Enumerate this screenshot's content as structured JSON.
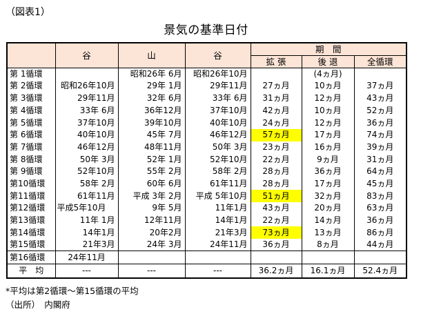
{
  "figure_label": "（図表1）",
  "title": "景気の基準日付",
  "colors": {
    "header_bg": "#FCE4D6",
    "highlight": "#FFFF00",
    "border": "#000000"
  },
  "table": {
    "header": {
      "cycle": "",
      "valley1": "谷",
      "peak": "山",
      "valley2": "谷",
      "period": "期　間",
      "expansion": "拡 張",
      "recession": "後 退",
      "full_cycle": "全循環"
    },
    "rows": [
      {
        "label": "第 1循環",
        "valley1": "",
        "peak": "昭和26年 6月",
        "valley2": "昭和26年10月",
        "expansion": "",
        "recession": "(4ヵ月)",
        "full": "",
        "highlight_expansion": false
      },
      {
        "label": "第 2循環",
        "valley1": "昭和26年10月",
        "peak": "29年 1月",
        "valley2": "29年11月",
        "expansion": "27ヵ月",
        "recession": "10ヵ月",
        "full": "37ヵ月",
        "highlight_expansion": false
      },
      {
        "label": "第 3循環",
        "valley1": "29年11月",
        "peak": "32年 6月",
        "valley2": "33年 6月",
        "expansion": "31ヵ月",
        "recession": "12ヵ月",
        "full": "43ヵ月",
        "highlight_expansion": false
      },
      {
        "label": "第 4循環",
        "valley1": "33年 6月",
        "peak": "36年12月",
        "valley2": "37年10月",
        "expansion": "42ヵ月",
        "recession": "10ヵ月",
        "full": "52ヵ月",
        "highlight_expansion": false
      },
      {
        "label": "第 5循環",
        "valley1": "37年10月",
        "peak": "39年10月",
        "valley2": "40年10月",
        "expansion": "24ヵ月",
        "recession": "12ヵ月",
        "full": "36ヵ月",
        "highlight_expansion": false
      },
      {
        "label": "第 6循環",
        "valley1": "40年10月",
        "peak": "45年 7月",
        "valley2": "46年12月",
        "expansion": "57ヵ月",
        "recession": "17ヵ月",
        "full": "74ヵ月",
        "highlight_expansion": true
      },
      {
        "label": "第 7循環",
        "valley1": "46年12月",
        "peak": "48年11月",
        "valley2": "50年 3月",
        "expansion": "23ヵ月",
        "recession": "16ヵ月",
        "full": "39ヵ月",
        "highlight_expansion": false
      },
      {
        "label": "第 8循環",
        "valley1": "50年 3月",
        "peak": "52年 1月",
        "valley2": "52年10月",
        "expansion": "22ヵ月",
        "recession": "9ヵ月",
        "full": "31ヵ月",
        "highlight_expansion": false
      },
      {
        "label": "第 9循環",
        "valley1": "52年10月",
        "peak": "55年 2月",
        "valley2": "58年 2月",
        "expansion": "28ヵ月",
        "recession": "36ヵ月",
        "full": "64ヵ月",
        "highlight_expansion": false
      },
      {
        "label": "第10循環",
        "valley1": "58年 2月",
        "peak": "60年 6月",
        "valley2": "61年11月",
        "expansion": "28ヵ月",
        "recession": "17ヵ月",
        "full": "45ヵ月",
        "highlight_expansion": false
      },
      {
        "label": "第11循環",
        "valley1": "61年11月",
        "peak": "平成 3年 2月",
        "valley2": "平成 5年10月",
        "expansion": "51ヵ月",
        "recession": "32ヵ月",
        "full": "83ヵ月",
        "highlight_expansion": true
      },
      {
        "label": "第12循環",
        "valley1": "平成5年10月",
        "peak": "9年 5月",
        "valley2": "11年1月",
        "expansion": "43ヵ月",
        "recession": "20ヵ月",
        "full": "63ヵ月",
        "highlight_expansion": false
      },
      {
        "label": "第13循環",
        "valley1": "11年 1月",
        "peak": "12年11月",
        "valley2": "14年1月",
        "expansion": "22ヵ月",
        "recession": "14ヵ月",
        "full": "36ヵ月",
        "highlight_expansion": false
      },
      {
        "label": "第14循環",
        "valley1": "14年1月",
        "peak": "20年2月",
        "valley2": "21年3月",
        "expansion": "73ヵ月",
        "recession": "13ヵ月",
        "full": "86ヵ月",
        "highlight_expansion": true
      },
      {
        "label": "第15循環",
        "valley1": "21年3月",
        "peak": "24年 3月",
        "valley2": "24年11月",
        "expansion": "36ヵ月",
        "recession": "8ヵ月",
        "full": "44ヵ月",
        "highlight_expansion": false
      },
      {
        "label": "第16循環",
        "valley1": "24年11月",
        "peak": "",
        "valley2": "",
        "expansion": "",
        "recession": "",
        "full": "",
        "highlight_expansion": false
      }
    ],
    "average": {
      "label": "平　均",
      "valley1": "---",
      "peak": "---",
      "valley2": "---",
      "expansion": "36.2ヵ月",
      "recession": "16.1ヵ月",
      "full": "52.4ヵ月"
    }
  },
  "footnotes": [
    "*平均は第2循環～第15循環の平均",
    "（出所）　内閣府"
  ]
}
